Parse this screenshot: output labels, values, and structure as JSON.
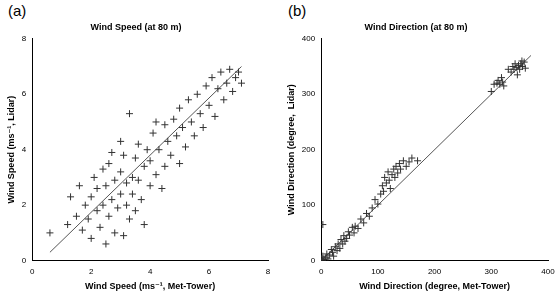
{
  "chart_data": [
    {
      "type": "scatter",
      "annotations": [
        "(a)"
      ],
      "title": "Wind Speed (at 80 m)",
      "x_label": "Wind Speed (ms⁻¹, Met-Tower)",
      "y_label": "Wind Speed (ms⁻¹, Lidar)",
      "xlim": [
        0,
        8
      ],
      "xticks": [
        0,
        2,
        4,
        6,
        8
      ],
      "ylim": [
        0,
        8
      ],
      "yticks": [
        0,
        2,
        4,
        6,
        8
      ],
      "grid": false,
      "series": [
        {
          "type": "scatter",
          "color": "#333333",
          "marker": "cross",
          "x": [
            0.6,
            1.2,
            1.3,
            1.5,
            1.6,
            1.7,
            1.8,
            1.9,
            2.0,
            2.0,
            2.1,
            2.2,
            2.2,
            2.3,
            2.4,
            2.4,
            2.5,
            2.5,
            2.6,
            2.6,
            2.7,
            2.8,
            2.8,
            2.9,
            3.0,
            3.0,
            3.1,
            3.1,
            3.2,
            3.2,
            3.3,
            3.3,
            3.4,
            3.4,
            3.5,
            3.5,
            3.6,
            3.6,
            3.7,
            3.8,
            3.8,
            3.9,
            4.0,
            4.0,
            4.1,
            4.2,
            4.3,
            4.4,
            4.5,
            4.5,
            4.6,
            4.7,
            4.8,
            4.9,
            5.0,
            5.0,
            5.1,
            5.2,
            5.3,
            5.4,
            5.5,
            5.6,
            5.7,
            5.8,
            5.9,
            6.0,
            6.1,
            6.2,
            6.3,
            6.4,
            6.5,
            6.6,
            6.7,
            6.8,
            6.9,
            7.0,
            7.1,
            4.2,
            3.0,
            2.7
          ],
          "values": [
            1.0,
            1.3,
            2.3,
            1.6,
            2.7,
            1.1,
            2.0,
            1.5,
            2.3,
            0.8,
            3.0,
            1.8,
            2.6,
            1.2,
            2.0,
            3.3,
            0.6,
            2.7,
            1.6,
            3.5,
            2.2,
            1.0,
            2.9,
            1.9,
            3.2,
            2.4,
            0.9,
            3.8,
            2.0,
            2.8,
            5.3,
            1.5,
            3.0,
            2.4,
            3.7,
            1.8,
            2.9,
            4.2,
            2.2,
            3.4,
            1.3,
            4.0,
            2.7,
            3.6,
            4.6,
            3.1,
            4.0,
            2.6,
            4.9,
            3.4,
            4.3,
            3.8,
            5.1,
            4.5,
            3.5,
            5.5,
            4.8,
            4.1,
            5.8,
            5.0,
            4.5,
            6.0,
            5.3,
            4.8,
            6.3,
            5.6,
            6.6,
            5.2,
            6.2,
            6.8,
            5.8,
            6.4,
            6.9,
            6.1,
            6.6,
            6.8,
            6.4,
            5.0,
            4.3,
            3.9
          ]
        },
        {
          "type": "line",
          "color": "#555555",
          "line_style": "solid",
          "x": [
            0.6,
            7.1
          ],
          "values": [
            0.3,
            7.0
          ]
        }
      ]
    },
    {
      "type": "scatter",
      "annotations": [
        "(b)"
      ],
      "title": "Wind Direction (at 80 m)",
      "x_label": "Wind Direction (degree, Met-Tower)",
      "y_label": "Wind Direction (degree,  Lidar)",
      "xlim": [
        0,
        400
      ],
      "xticks": [
        0,
        100,
        200,
        300,
        400
      ],
      "ylim": [
        0,
        400
      ],
      "yticks": [
        0,
        100,
        200,
        300,
        400
      ],
      "grid": false,
      "series": [
        {
          "type": "scatter",
          "color": "#333333",
          "marker": "cross",
          "x": [
            0,
            2,
            3,
            5,
            8,
            10,
            12,
            15,
            3,
            18,
            20,
            22,
            25,
            28,
            30,
            33,
            35,
            38,
            40,
            42,
            45,
            48,
            50,
            55,
            58,
            60,
            65,
            70,
            75,
            80,
            85,
            90,
            95,
            100,
            105,
            108,
            110,
            112,
            115,
            118,
            120,
            122,
            125,
            128,
            130,
            132,
            135,
            138,
            140,
            145,
            150,
            155,
            160,
            170,
            300,
            305,
            310,
            312,
            315,
            318,
            320,
            322,
            330,
            335,
            338,
            340,
            342,
            345,
            348,
            350,
            352,
            355,
            358,
            360,
            346,
            354
          ],
          "values": [
            3,
            0,
            8,
            2,
            5,
            12,
            3,
            10,
            65,
            20,
            15,
            8,
            25,
            18,
            30,
            22,
            38,
            30,
            45,
            35,
            40,
            52,
            46,
            60,
            50,
            62,
            58,
            75,
            68,
            85,
            80,
            95,
            110,
            102,
            120,
            135,
            125,
            150,
            140,
            160,
            145,
            130,
            155,
            165,
            150,
            170,
            158,
            175,
            165,
            180,
            170,
            178,
            185,
            180,
            305,
            318,
            320,
            325,
            318,
            330,
            322,
            315,
            345,
            340,
            350,
            345,
            355,
            348,
            352,
            345,
            355,
            350,
            358,
            347,
            335,
            360
          ]
        },
        {
          "type": "line",
          "color": "#555555",
          "line_style": "solid",
          "x": [
            0,
            370
          ],
          "values": [
            0,
            370
          ]
        }
      ]
    }
  ]
}
